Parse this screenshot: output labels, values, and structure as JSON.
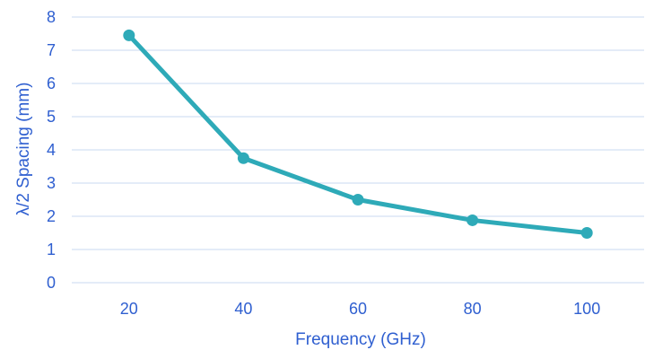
{
  "chart_data": {
    "type": "line",
    "x": [
      20,
      40,
      60,
      80,
      100
    ],
    "categories": [
      "20",
      "40",
      "60",
      "80",
      "100"
    ],
    "series": [
      {
        "values": [
          7.45,
          3.75,
          2.5,
          1.88,
          1.5
        ]
      }
    ],
    "xlabel": "Frequency (GHz)",
    "ylabel": "λ/2 Spacing (mm)",
    "ylim": [
      0,
      8
    ],
    "yticks": [
      "0",
      "1",
      "2",
      "3",
      "4",
      "5",
      "6",
      "7",
      "8"
    ],
    "grid": "horizontal",
    "legend": "none"
  },
  "colors": {
    "line": "#2eaab8",
    "text": "#2f5fd0",
    "grid": "#c9d9f0"
  }
}
